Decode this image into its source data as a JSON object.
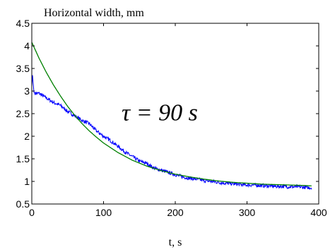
{
  "chart_data": {
    "type": "line",
    "title": "",
    "ylabel": "Horizontal width, mm",
    "xlabel": "t, s",
    "xlim": [
      0,
      400
    ],
    "ylim": [
      0.5,
      4.5
    ],
    "xticks": [
      "0",
      "100",
      "200",
      "300",
      "400"
    ],
    "yticks": [
      "0.5",
      "1",
      "1.5",
      "2",
      "2.5",
      "3",
      "3.5",
      "4",
      "4.5"
    ],
    "grid": false,
    "annotation": {
      "text": "τ = 90 s",
      "x": 135,
      "y": 2.35
    },
    "series": [
      {
        "kind": "measured",
        "color": "#0000ff",
        "x": [
          0,
          1,
          3,
          5,
          10,
          20,
          30,
          40,
          50,
          60,
          70,
          80,
          90,
          100,
          110,
          120,
          130,
          140,
          150,
          160,
          170,
          180,
          190,
          200,
          210,
          220,
          230,
          240,
          250,
          260,
          270,
          280,
          290,
          300,
          310,
          320,
          330,
          340,
          350,
          360,
          370,
          380,
          390
        ],
        "y": [
          3.1,
          3.35,
          2.97,
          2.95,
          2.95,
          2.85,
          2.75,
          2.68,
          2.55,
          2.45,
          2.35,
          2.28,
          2.12,
          2.0,
          1.9,
          1.78,
          1.65,
          1.55,
          1.45,
          1.4,
          1.3,
          1.25,
          1.2,
          1.15,
          1.1,
          1.07,
          1.05,
          1.02,
          1.0,
          0.98,
          0.96,
          0.95,
          0.93,
          0.92,
          0.92,
          0.91,
          0.9,
          0.89,
          0.89,
          0.88,
          0.88,
          0.87,
          0.86
        ],
        "noise": 0.04
      },
      {
        "kind": "fit",
        "color": "#008000",
        "x": [
          0,
          10,
          20,
          30,
          40,
          50,
          60,
          70,
          80,
          90,
          100,
          120,
          140,
          160,
          180,
          200,
          220,
          240,
          260,
          280,
          300,
          320,
          340,
          360,
          380,
          390
        ],
        "y": [
          4.08,
          3.73,
          3.42,
          3.14,
          2.89,
          2.66,
          2.46,
          2.28,
          2.12,
          1.98,
          1.85,
          1.64,
          1.47,
          1.34,
          1.24,
          1.16,
          1.1,
          1.05,
          1.01,
          0.98,
          0.96,
          0.94,
          0.93,
          0.92,
          0.91,
          0.9
        ]
      }
    ]
  }
}
